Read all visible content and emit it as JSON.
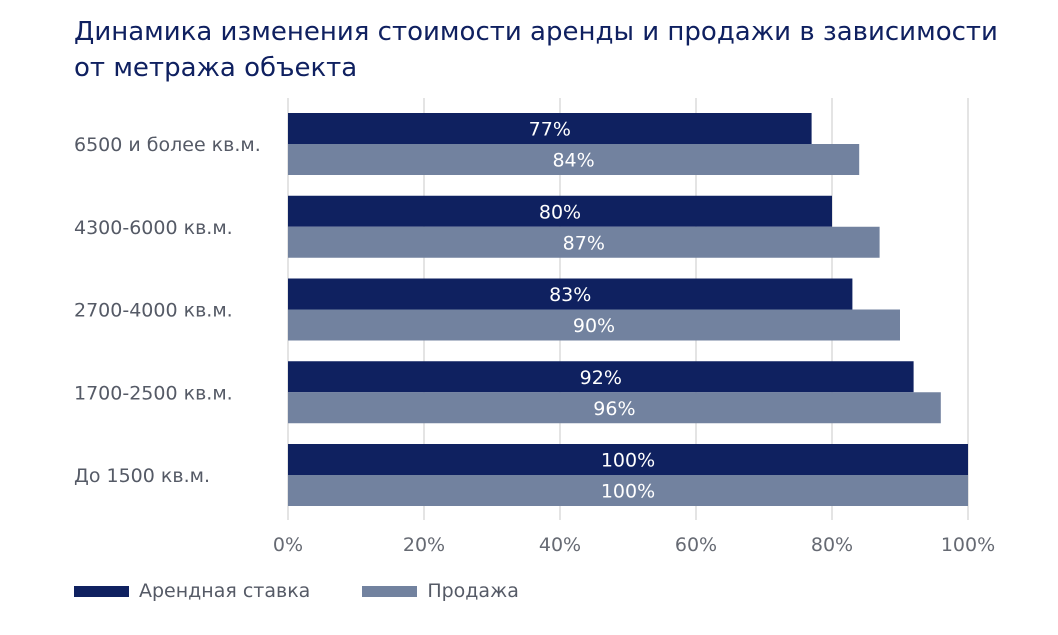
{
  "chart_data": {
    "type": "bar",
    "orientation": "horizontal",
    "title": "Динамика изменения стоимости аренды и продажи в зависимости от метража объекта",
    "categories": [
      "6500 и более кв.м.",
      "4300-6000 кв.м.",
      "2700-4000 кв.м.",
      "1700-2500 кв.м.",
      "До 1500 кв.м."
    ],
    "series": [
      {
        "name": "Арендная ставка",
        "color": "#0f2160",
        "values": [
          77,
          80,
          83,
          92,
          100
        ],
        "labels": [
          "77%",
          "80%",
          "83%",
          "92%",
          "100%"
        ]
      },
      {
        "name": "Продажа",
        "color": "#72829f",
        "values": [
          84,
          87,
          90,
          96,
          100
        ],
        "labels": [
          "84%",
          "87%",
          "90%",
          "96%",
          "100%"
        ]
      }
    ],
    "xlim": [
      0,
      100
    ],
    "x_ticks": [
      0,
      20,
      40,
      60,
      80,
      100
    ],
    "x_tick_labels": [
      "0%",
      "20%",
      "40%",
      "60%",
      "80%",
      "100%"
    ],
    "grid": true,
    "legend_position": "bottom-left"
  }
}
